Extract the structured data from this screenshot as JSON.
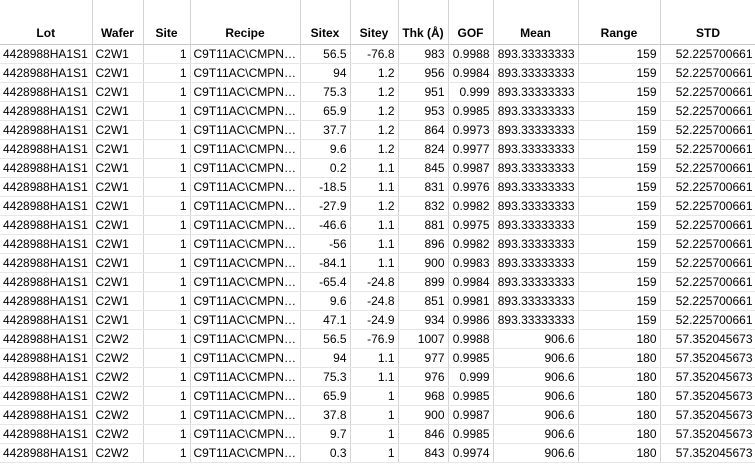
{
  "columns": [
    {
      "key": "lot",
      "label": "Lot"
    },
    {
      "key": "wafer",
      "label": "Wafer"
    },
    {
      "key": "site",
      "label": "Site"
    },
    {
      "key": "recipe",
      "label": "Recipe"
    },
    {
      "key": "sitex",
      "label": "Sitex"
    },
    {
      "key": "sitey",
      "label": "Sitey"
    },
    {
      "key": "thk",
      "label": "Thk (Å)"
    },
    {
      "key": "gof",
      "label": "GOF"
    },
    {
      "key": "mean",
      "label": "Mean"
    },
    {
      "key": "range",
      "label": "Range"
    },
    {
      "key": "std",
      "label": "STD"
    }
  ],
  "rows": [
    [
      "4428988HA1S1",
      "C2W1",
      "1",
      "C9T11AC\\CMPNI...",
      "56.5",
      "-76.8",
      "983",
      "0.9988",
      "893.33333333",
      "159",
      "52.225700661"
    ],
    [
      "4428988HA1S1",
      "C2W1",
      "1",
      "C9T11AC\\CMPNI...",
      "94",
      "1.2",
      "956",
      "0.9984",
      "893.33333333",
      "159",
      "52.225700661"
    ],
    [
      "4428988HA1S1",
      "C2W1",
      "1",
      "C9T11AC\\CMPNI...",
      "75.3",
      "1.2",
      "951",
      "0.999",
      "893.33333333",
      "159",
      "52.225700661"
    ],
    [
      "4428988HA1S1",
      "C2W1",
      "1",
      "C9T11AC\\CMPNI...",
      "65.9",
      "1.2",
      "953",
      "0.9985",
      "893.33333333",
      "159",
      "52.225700661"
    ],
    [
      "4428988HA1S1",
      "C2W1",
      "1",
      "C9T11AC\\CMPNI...",
      "37.7",
      "1.2",
      "864",
      "0.9973",
      "893.33333333",
      "159",
      "52.225700661"
    ],
    [
      "4428988HA1S1",
      "C2W1",
      "1",
      "C9T11AC\\CMPNI...",
      "9.6",
      "1.2",
      "824",
      "0.9977",
      "893.33333333",
      "159",
      "52.225700661"
    ],
    [
      "4428988HA1S1",
      "C2W1",
      "1",
      "C9T11AC\\CMPNI...",
      "0.2",
      "1.1",
      "845",
      "0.9987",
      "893.33333333",
      "159",
      "52.225700661"
    ],
    [
      "4428988HA1S1",
      "C2W1",
      "1",
      "C9T11AC\\CMPNI...",
      "-18.5",
      "1.1",
      "831",
      "0.9976",
      "893.33333333",
      "159",
      "52.225700661"
    ],
    [
      "4428988HA1S1",
      "C2W1",
      "1",
      "C9T11AC\\CMPNI...",
      "-27.9",
      "1.2",
      "832",
      "0.9982",
      "893.33333333",
      "159",
      "52.225700661"
    ],
    [
      "4428988HA1S1",
      "C2W1",
      "1",
      "C9T11AC\\CMPNI...",
      "-46.6",
      "1.1",
      "881",
      "0.9975",
      "893.33333333",
      "159",
      "52.225700661"
    ],
    [
      "4428988HA1S1",
      "C2W1",
      "1",
      "C9T11AC\\CMPNI...",
      "-56",
      "1.1",
      "896",
      "0.9982",
      "893.33333333",
      "159",
      "52.225700661"
    ],
    [
      "4428988HA1S1",
      "C2W1",
      "1",
      "C9T11AC\\CMPNI...",
      "-84.1",
      "1.1",
      "900",
      "0.9983",
      "893.33333333",
      "159",
      "52.225700661"
    ],
    [
      "4428988HA1S1",
      "C2W1",
      "1",
      "C9T11AC\\CMPNI...",
      "-65.4",
      "-24.8",
      "899",
      "0.9984",
      "893.33333333",
      "159",
      "52.225700661"
    ],
    [
      "4428988HA1S1",
      "C2W1",
      "1",
      "C9T11AC\\CMPNI...",
      "9.6",
      "-24.8",
      "851",
      "0.9981",
      "893.33333333",
      "159",
      "52.225700661"
    ],
    [
      "4428988HA1S1",
      "C2W1",
      "1",
      "C9T11AC\\CMPNI...",
      "47.1",
      "-24.9",
      "934",
      "0.9986",
      "893.33333333",
      "159",
      "52.225700661"
    ],
    [
      "4428988HA1S1",
      "C2W2",
      "1",
      "C9T11AC\\CMPNI...",
      "56.5",
      "-76.9",
      "1007",
      "0.9988",
      "906.6",
      "180",
      "57.352045673"
    ],
    [
      "4428988HA1S1",
      "C2W2",
      "1",
      "C9T11AC\\CMPNI...",
      "94",
      "1.1",
      "977",
      "0.9985",
      "906.6",
      "180",
      "57.352045673"
    ],
    [
      "4428988HA1S1",
      "C2W2",
      "1",
      "C9T11AC\\CMPNI...",
      "75.3",
      "1.1",
      "976",
      "0.999",
      "906.6",
      "180",
      "57.352045673"
    ],
    [
      "4428988HA1S1",
      "C2W2",
      "1",
      "C9T11AC\\CMPNI...",
      "65.9",
      "1",
      "968",
      "0.9985",
      "906.6",
      "180",
      "57.352045673"
    ],
    [
      "4428988HA1S1",
      "C2W2",
      "1",
      "C9T11AC\\CMPNI...",
      "37.8",
      "1",
      "900",
      "0.9987",
      "906.6",
      "180",
      "57.352045673"
    ],
    [
      "4428988HA1S1",
      "C2W2",
      "1",
      "C9T11AC\\CMPNI...",
      "9.7",
      "1",
      "846",
      "0.9985",
      "906.6",
      "180",
      "57.352045673"
    ],
    [
      "4428988HA1S1",
      "C2W2",
      "1",
      "C9T11AC\\CMPNI...",
      "0.3",
      "1",
      "843",
      "0.9974",
      "906.6",
      "180",
      "57.352045673"
    ]
  ]
}
